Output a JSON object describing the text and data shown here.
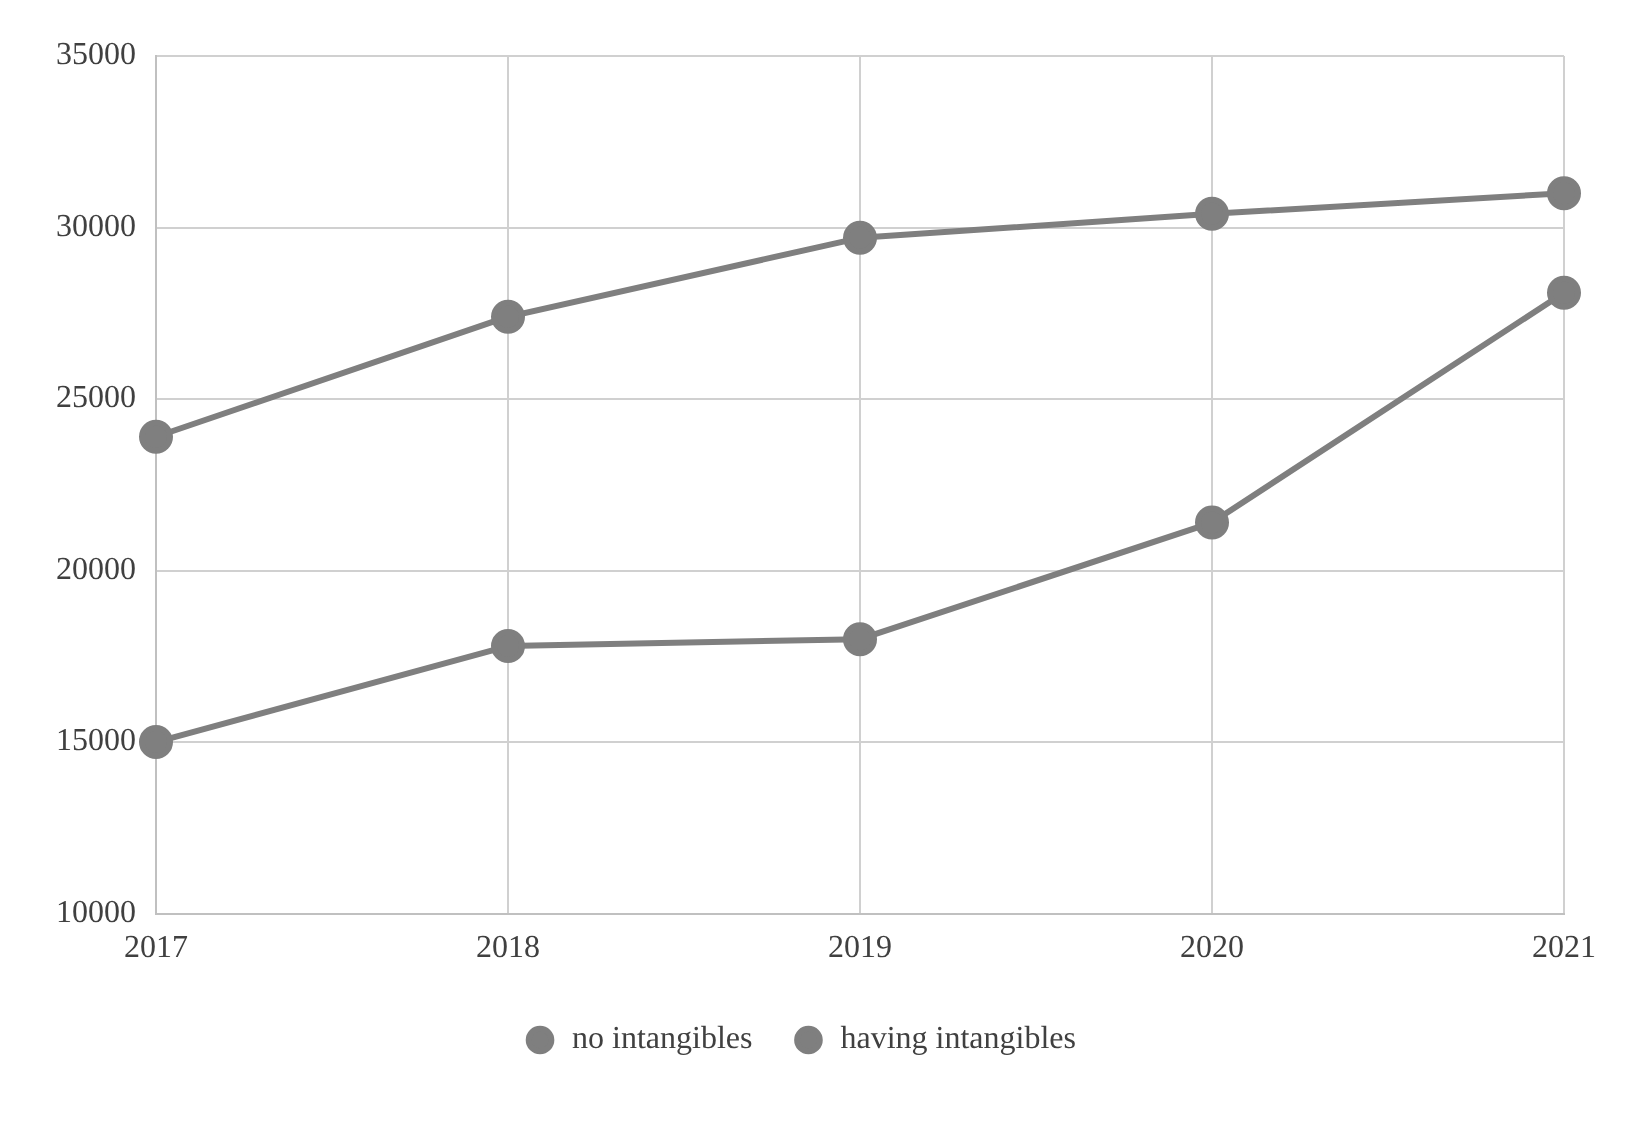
{
  "chart_data": {
    "type": "line",
    "categories": [
      "2017",
      "2018",
      "2019",
      "2020",
      "2021"
    ],
    "series": [
      {
        "name": "no intangibles",
        "color": "#7f7f7f",
        "values": [
          15000,
          17800,
          18000,
          21400,
          28100
        ]
      },
      {
        "name": "having intangibles",
        "color": "#7f7f7f",
        "values": [
          23900,
          27400,
          29700,
          30400,
          31000
        ]
      }
    ],
    "ylim": [
      10000,
      35000
    ],
    "yticks": [
      10000,
      15000,
      20000,
      25000,
      30000,
      35000
    ],
    "grid": true,
    "legend": "bottom",
    "marker": "circle",
    "line_style": "solid"
  }
}
